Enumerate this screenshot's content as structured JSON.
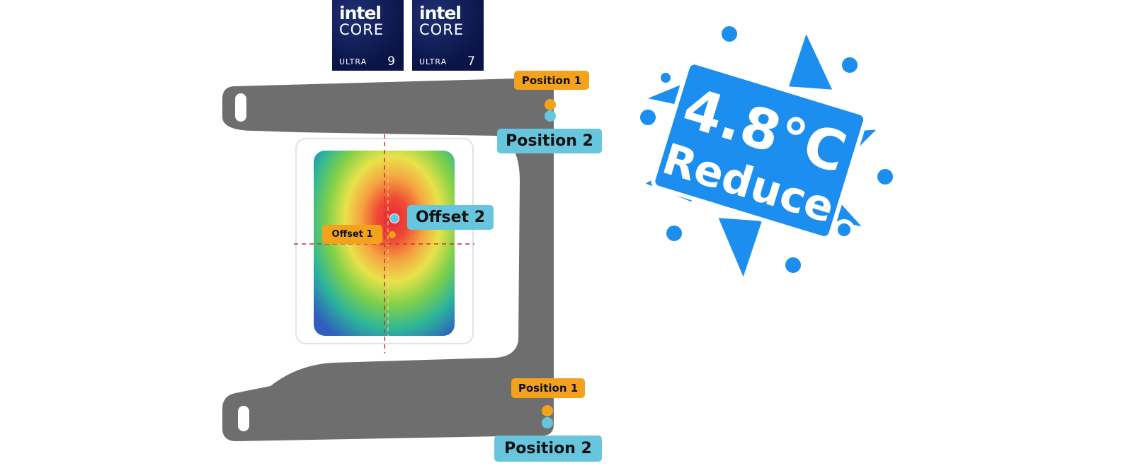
{
  "badges": [
    {
      "brand": "intel",
      "line": "CORE",
      "tier": "ULTRA",
      "number": "9"
    },
    {
      "brand": "intel",
      "line": "CORE",
      "tier": "ULTRA",
      "number": "7"
    }
  ],
  "labels": {
    "top_position_1": "Position 1",
    "top_position_2": "Position 2",
    "bottom_position_1": "Position 1",
    "bottom_position_2": "Position 2",
    "offset_1": "Offset 1",
    "offset_2": "Offset 2"
  },
  "callout": {
    "value": "4.8°C",
    "text": "Reduce"
  },
  "colors": {
    "orange": "#f2a21c",
    "blue": "#67c6dd",
    "bracket": "#6e6e6e",
    "snowflake": "#1b8ef0"
  }
}
